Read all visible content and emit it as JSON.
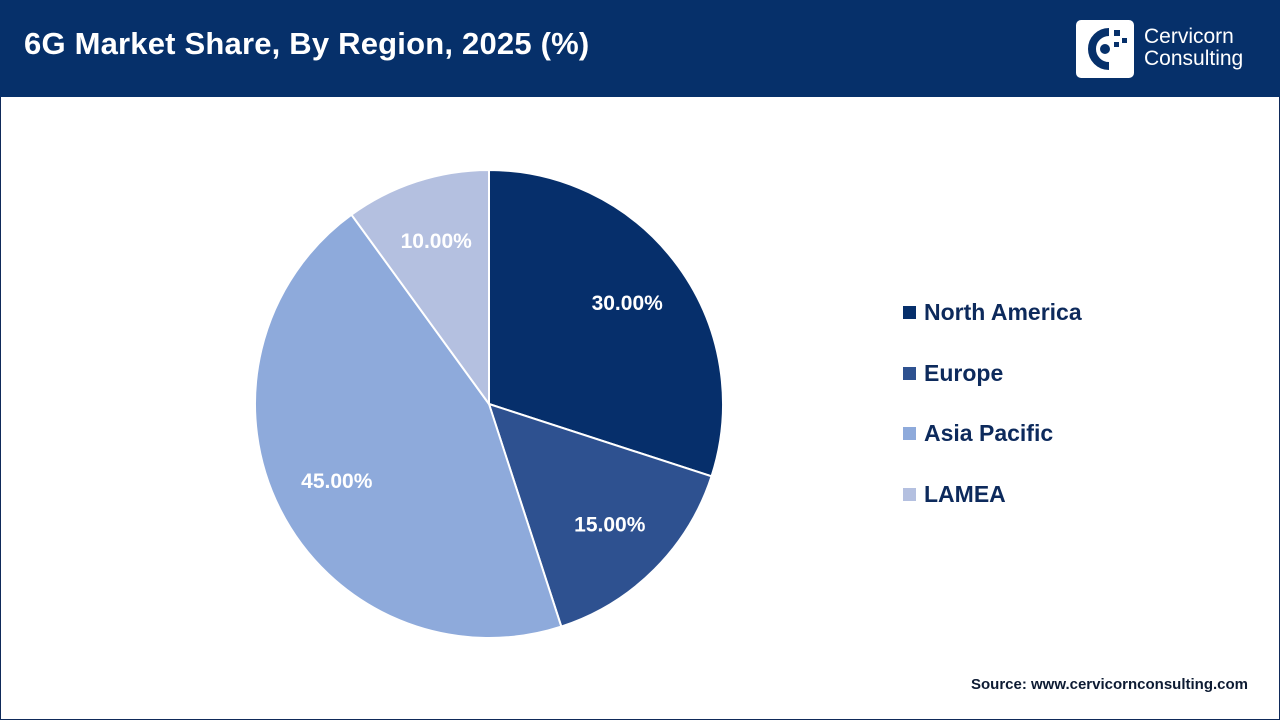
{
  "header": {
    "title": "6G Market Share, By Region, 2025 (%)",
    "logo_line1": "Cervicorn",
    "logo_line2": "Consulting"
  },
  "source": "Source: www.cervicornconsulting.com",
  "colors": {
    "header_bg": "#06306a",
    "north_america": "#062f6b",
    "europe": "#2e5190",
    "asia_pacific": "#8eaadb",
    "lamea": "#b4c0e0"
  },
  "chart_data": {
    "type": "pie",
    "title": "6G Market Share, By Region, 2025 (%)",
    "legend_position": "right",
    "slices": [
      {
        "name": "North America",
        "value": 30.0,
        "label": "30.00%",
        "color": "#062f6b"
      },
      {
        "name": "Europe",
        "value": 15.0,
        "label": "15.00%",
        "color": "#2e5190"
      },
      {
        "name": "Asia Pacific",
        "value": 45.0,
        "label": "45.00%",
        "color": "#8eaadb"
      },
      {
        "name": "LAMEA",
        "value": 10.0,
        "label": "10.00%",
        "color": "#b4c0e0"
      }
    ]
  }
}
